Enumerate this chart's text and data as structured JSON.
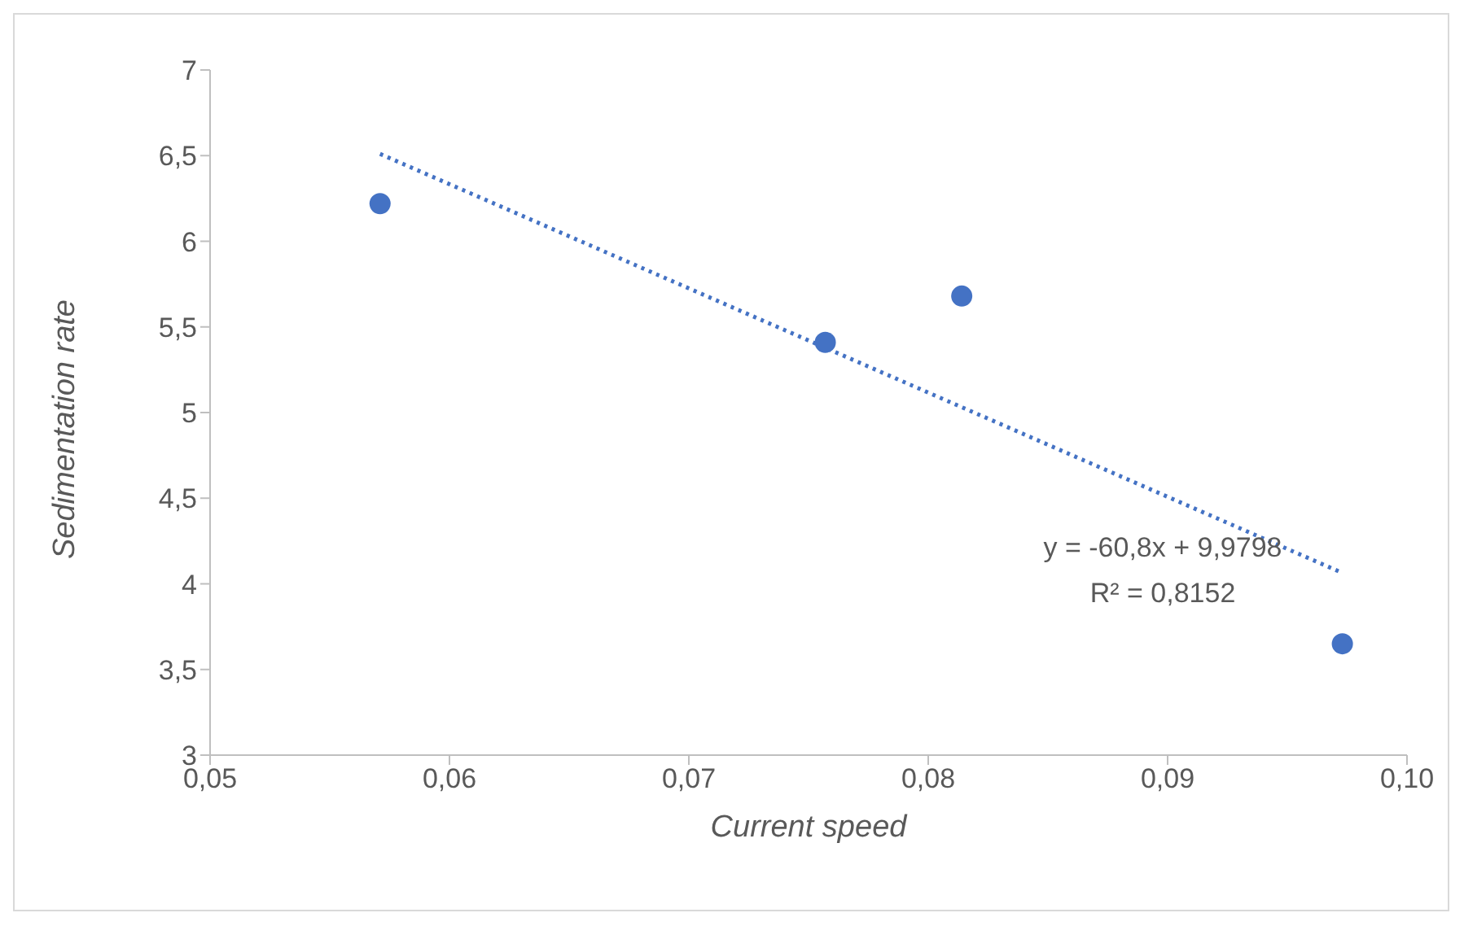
{
  "chart_data": {
    "type": "scatter",
    "xlabel": "Current speed",
    "ylabel": "Sedimentation rate",
    "marker": "circle",
    "series": [
      {
        "color": "#4472c4",
        "x": [
          0.0571,
          0.0757,
          0.0814,
          0.0973
        ],
        "values": [
          6.22,
          5.41,
          5.68,
          3.65
        ]
      },
      {
        "type": "line",
        "color": "#4472c4",
        "line_style": "dotted",
        "marker": "none",
        "x": [
          0.0571,
          0.0972
        ],
        "values": [
          6.51,
          4.07
        ]
      }
    ],
    "xlim": [
      0.05,
      0.1
    ],
    "xticks": [
      {
        "value": 0.05,
        "label": "0,05"
      },
      {
        "value": 0.06,
        "label": "0,06"
      },
      {
        "value": 0.07,
        "label": "0,07"
      },
      {
        "value": 0.08,
        "label": "0,08"
      },
      {
        "value": 0.09,
        "label": "0,09"
      },
      {
        "value": 0.1,
        "label": "0,10"
      }
    ],
    "ylim": [
      3,
      7
    ],
    "yticks": [
      3,
      {
        "value": 3.5,
        "label": "3,5"
      },
      4,
      {
        "value": 4.5,
        "label": "4,5"
      },
      5,
      {
        "value": 5.5,
        "label": "5,5"
      },
      6,
      {
        "value": 6.5,
        "label": "6,5"
      },
      7
    ],
    "annotations": [
      "y = -60,8x + 9,9798",
      "R² = 0,8152"
    ]
  }
}
